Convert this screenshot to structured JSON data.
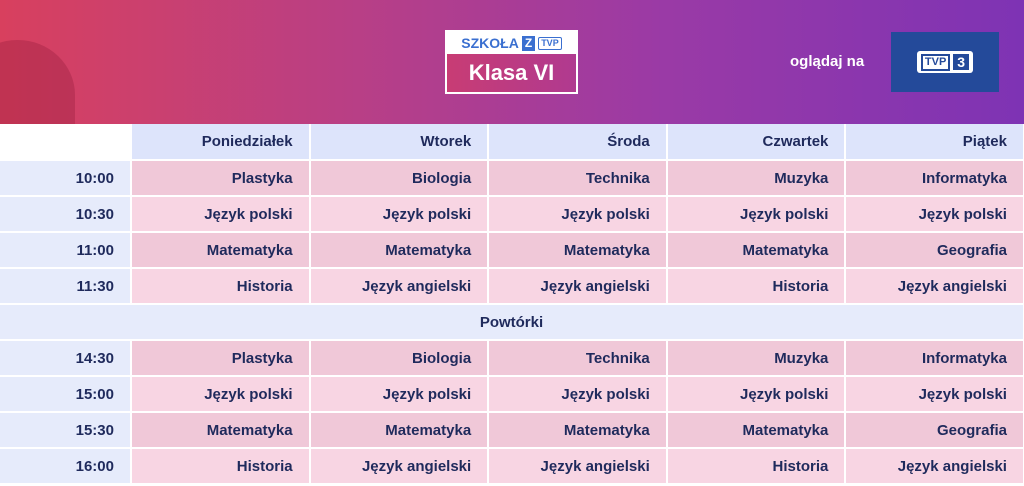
{
  "header": {
    "logo_top": "SZKOŁA",
    "logo_z": "Z",
    "logo_tvp": "TVP",
    "logo_class": "Klasa VI",
    "watch_label": "oglądaj na",
    "channel_tvp": "TVP",
    "channel_number": "3",
    "colors": {
      "gradient_start": "#d8405e",
      "gradient_end": "#7e33b4",
      "channel_bg": "#244a9a"
    }
  },
  "days": [
    "Poniedziałek",
    "Wtorek",
    "Środa",
    "Czwartek",
    "Piątek"
  ],
  "schedule": [
    {
      "time": "10:00",
      "lessons": [
        "Plastyka",
        "Biologia",
        "Technika",
        "Muzyka",
        "Informatyka"
      ]
    },
    {
      "time": "10:30",
      "lessons": [
        "Język polski",
        "Język polski",
        "Język polski",
        "Język polski",
        "Język polski"
      ]
    },
    {
      "time": "11:00",
      "lessons": [
        "Matematyka",
        "Matematyka",
        "Matematyka",
        "Matematyka",
        "Geografia"
      ]
    },
    {
      "time": "11:30",
      "lessons": [
        "Historia",
        "Język angielski",
        "Język angielski",
        "Historia",
        "Język angielski"
      ]
    }
  ],
  "separator": "Powtórki",
  "repeats": [
    {
      "time": "14:30",
      "lessons": [
        "Plastyka",
        "Biologia",
        "Technika",
        "Muzyka",
        "Informatyka"
      ]
    },
    {
      "time": "15:00",
      "lessons": [
        "Język polski",
        "Język polski",
        "Język polski",
        "Język polski",
        "Język polski"
      ]
    },
    {
      "time": "15:30",
      "lessons": [
        "Matematyka",
        "Matematyka",
        "Matematyka",
        "Matematyka",
        "Geografia"
      ]
    },
    {
      "time": "16:00",
      "lessons": [
        "Historia",
        "Język angielski",
        "Język angielski",
        "Historia",
        "Język angielski"
      ]
    }
  ]
}
